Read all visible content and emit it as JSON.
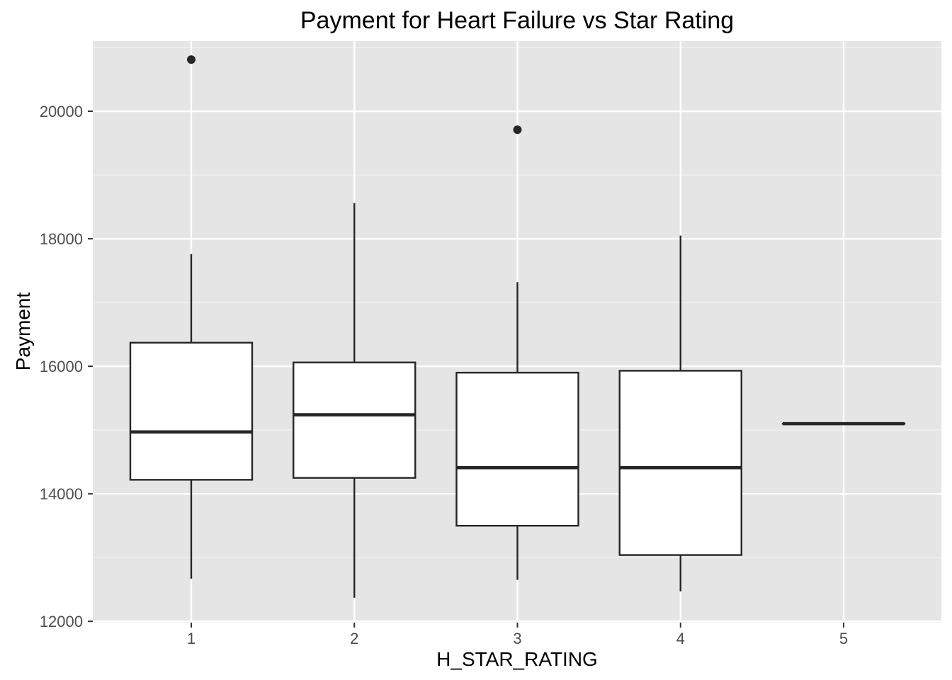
{
  "chart_data": {
    "type": "boxplot",
    "title": "Payment for Heart Failure vs Star Rating",
    "xlabel": "H_STAR_RATING",
    "ylabel": "Payment",
    "ylim": [
      11980,
      21100
    ],
    "y_ticks": [
      12000,
      14000,
      16000,
      18000,
      20000
    ],
    "y_minor_ticks": [
      13000,
      15000,
      17000,
      19000,
      21000
    ],
    "categories": [
      "1",
      "2",
      "3",
      "4",
      "5"
    ],
    "boxes": [
      {
        "category": "1",
        "whisker_low": 12670,
        "q1": 14220,
        "median": 14970,
        "q3": 16370,
        "whisker_high": 17760,
        "outliers": [
          20810
        ]
      },
      {
        "category": "2",
        "whisker_low": 12370,
        "q1": 14250,
        "median": 15240,
        "q3": 16060,
        "whisker_high": 18560,
        "outliers": []
      },
      {
        "category": "3",
        "whisker_low": 12650,
        "q1": 13500,
        "median": 14410,
        "q3": 15900,
        "whisker_high": 17320,
        "outliers": [
          19710
        ]
      },
      {
        "category": "4",
        "whisker_low": 12470,
        "q1": 13040,
        "median": 14410,
        "q3": 15930,
        "whisker_high": 18050,
        "outliers": []
      },
      {
        "category": "5",
        "whisker_low": 15100,
        "q1": 15100,
        "median": 15100,
        "q3": 15100,
        "whisker_high": 15100,
        "outliers": []
      }
    ],
    "grid": true,
    "legend": "none",
    "colors": {
      "panel_background": "#e5e5e5",
      "grid_major": "#ffffff",
      "grid_minor": "#f2f2f2",
      "box_fill": "#ffffff",
      "box_line": "#262626",
      "tick_text": "#4d4d4d",
      "text": "#000000"
    }
  }
}
